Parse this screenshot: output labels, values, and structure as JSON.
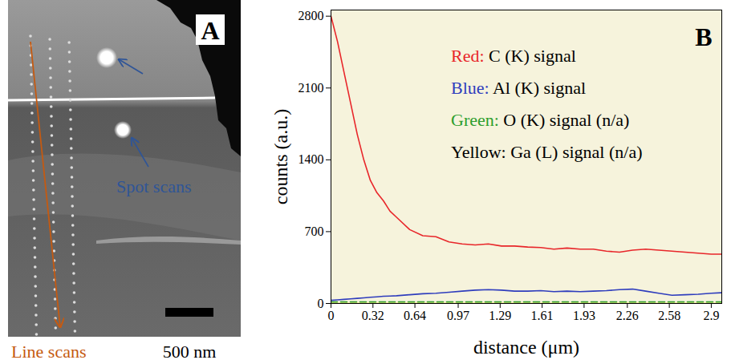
{
  "chart_data": {
    "type": "line",
    "panel_label": "B",
    "x_label": "distance (μm)",
    "y_label": "counts (a.u.)",
    "x": [
      0,
      0.05,
      0.1,
      0.15,
      0.2,
      0.25,
      0.3,
      0.35,
      0.4,
      0.45,
      0.5,
      0.6,
      0.7,
      0.8,
      0.9,
      1.0,
      1.1,
      1.2,
      1.3,
      1.4,
      1.5,
      1.6,
      1.7,
      1.8,
      1.9,
      2.0,
      2.1,
      2.2,
      2.3,
      2.4,
      2.5,
      2.6,
      2.7,
      2.8,
      2.9,
      2.98
    ],
    "series": [
      {
        "name": "Red: C (K) signal",
        "color": "#e8262a",
        "line_style": "solid",
        "values": [
          2800,
          2550,
          2250,
          1950,
          1650,
          1400,
          1200,
          1080,
          1000,
          900,
          840,
          720,
          660,
          650,
          600,
          580,
          570,
          580,
          560,
          560,
          550,
          545,
          530,
          540,
          530,
          530,
          510,
          500,
          520,
          530,
          520,
          510,
          500,
          490,
          480,
          480
        ]
      },
      {
        "name": "Blue: Al (K) signal",
        "color": "#2f3dbd",
        "line_style": "solid",
        "values": [
          30,
          35,
          40,
          45,
          50,
          55,
          60,
          65,
          70,
          72,
          75,
          85,
          95,
          100,
          110,
          120,
          130,
          135,
          130,
          120,
          120,
          125,
          115,
          120,
          115,
          120,
          125,
          135,
          140,
          120,
          100,
          80,
          85,
          90,
          100,
          105
        ]
      },
      {
        "name": "Green: O (K) signal (n/a)",
        "color": "#2e9e2e",
        "line_style": "dashed",
        "values": [
          15,
          15,
          15,
          15,
          15,
          15,
          15,
          15,
          15,
          15,
          15,
          15,
          15,
          15,
          15,
          15,
          15,
          15,
          15,
          15,
          15,
          15,
          15,
          15,
          15,
          15,
          15,
          15,
          15,
          15,
          15,
          15,
          15,
          15,
          15,
          15
        ]
      },
      {
        "name": "Yellow: Ga (L) signal (n/a)",
        "color": "#f2e600",
        "line_style": "solid",
        "values": [
          0,
          0,
          0,
          0,
          0,
          0,
          0,
          0,
          0,
          0,
          0,
          0,
          0,
          0,
          0,
          0,
          0,
          0,
          0,
          0,
          0,
          0,
          0,
          0,
          0,
          0,
          0,
          0,
          0,
          0,
          0,
          0,
          0,
          0,
          0,
          0
        ]
      }
    ],
    "xlim": [
      0,
      2.98
    ],
    "xticks": [
      0,
      0.32,
      0.64,
      0.97,
      1.29,
      1.61,
      1.93,
      2.26,
      2.58,
      2.9
    ],
    "ylim": [
      0,
      2860
    ],
    "yticks": [
      0,
      700,
      1400,
      2100,
      2800
    ],
    "grid": false,
    "legend": "top-right"
  },
  "image_panel": {
    "panel_label": "A",
    "spot_label": "Spot scans",
    "line_label": "Line scans",
    "scale_bar": "500 nm"
  }
}
